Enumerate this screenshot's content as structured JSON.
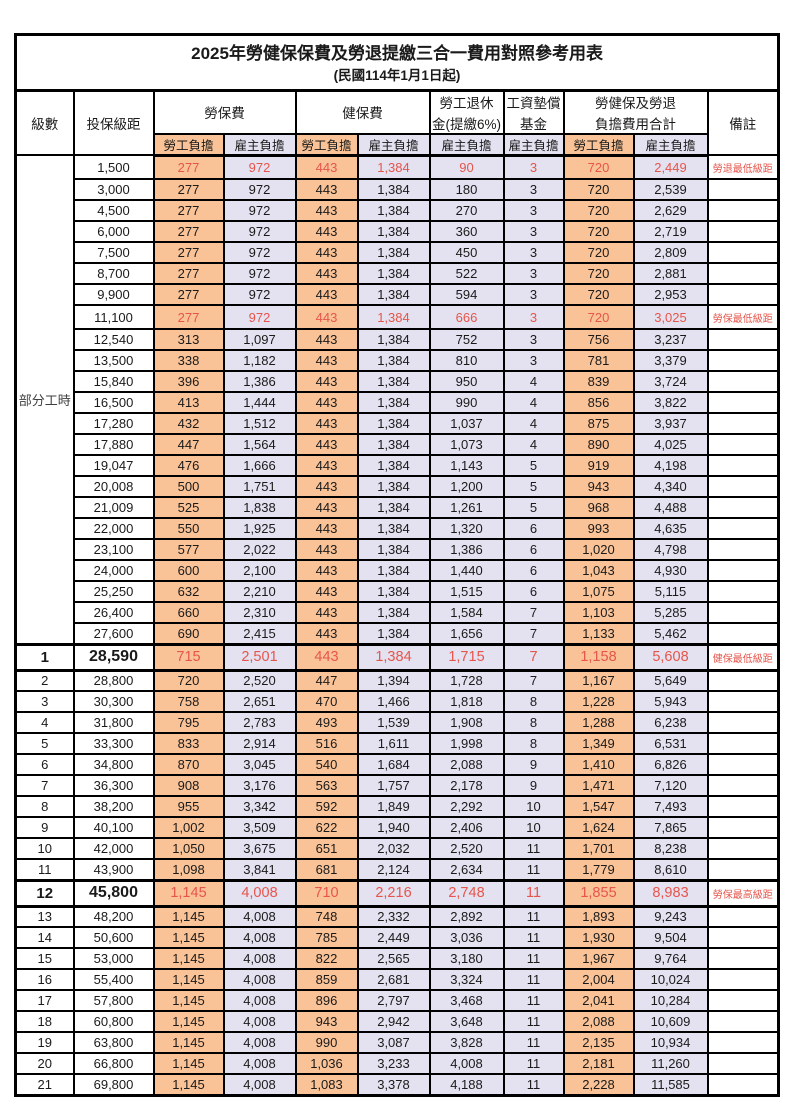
{
  "title": "2025年勞健保保費及勞退提繳三合一費用對照參考用表",
  "subtitle": "(民國114年1月1日起)",
  "colors": {
    "employee_bg": "#fac397",
    "employer_bg": "#e4e2f0",
    "highlight_text": "#e6554b",
    "border": "#000000"
  },
  "header": {
    "level": "級數",
    "bracket": "投保級距",
    "labor_insurance": "勞保費",
    "health_insurance": "健保費",
    "pension_line1": "勞工退休",
    "pension_line2": "金(提繳6%)",
    "arrears_line1": "工資墊償",
    "arrears_line2": "基金",
    "total_line1": "勞健保及勞退",
    "total_line2": "負擔費用合計",
    "remark": "備註",
    "employee": "勞工負擔",
    "employer": "雇主負擔"
  },
  "part_time_label": "部分工時",
  "rows": [
    {
      "lv": "",
      "br": "1,500",
      "v": [
        "277",
        "972",
        "443",
        "1,384",
        "90",
        "3",
        "720",
        "2,449"
      ],
      "rm": "勞退最低級距",
      "em": "red"
    },
    {
      "lv": "",
      "br": "3,000",
      "v": [
        "277",
        "972",
        "443",
        "1,384",
        "180",
        "3",
        "720",
        "2,539"
      ],
      "rm": "",
      "em": ""
    },
    {
      "lv": "",
      "br": "4,500",
      "v": [
        "277",
        "972",
        "443",
        "1,384",
        "270",
        "3",
        "720",
        "2,629"
      ],
      "rm": "",
      "em": ""
    },
    {
      "lv": "",
      "br": "6,000",
      "v": [
        "277",
        "972",
        "443",
        "1,384",
        "360",
        "3",
        "720",
        "2,719"
      ],
      "rm": "",
      "em": ""
    },
    {
      "lv": "",
      "br": "7,500",
      "v": [
        "277",
        "972",
        "443",
        "1,384",
        "450",
        "3",
        "720",
        "2,809"
      ],
      "rm": "",
      "em": ""
    },
    {
      "lv": "",
      "br": "8,700",
      "v": [
        "277",
        "972",
        "443",
        "1,384",
        "522",
        "3",
        "720",
        "2,881"
      ],
      "rm": "",
      "em": ""
    },
    {
      "lv": "",
      "br": "9,900",
      "v": [
        "277",
        "972",
        "443",
        "1,384",
        "594",
        "3",
        "720",
        "2,953"
      ],
      "rm": "",
      "em": ""
    },
    {
      "lv": "",
      "br": "11,100",
      "v": [
        "277",
        "972",
        "443",
        "1,384",
        "666",
        "3",
        "720",
        "3,025"
      ],
      "rm": "勞保最低級距",
      "em": "red"
    },
    {
      "lv": "",
      "br": "12,540",
      "v": [
        "313",
        "1,097",
        "443",
        "1,384",
        "752",
        "3",
        "756",
        "3,237"
      ],
      "rm": "",
      "em": ""
    },
    {
      "lv": "",
      "br": "13,500",
      "v": [
        "338",
        "1,182",
        "443",
        "1,384",
        "810",
        "3",
        "781",
        "3,379"
      ],
      "rm": "",
      "em": ""
    },
    {
      "lv": "",
      "br": "15,840",
      "v": [
        "396",
        "1,386",
        "443",
        "1,384",
        "950",
        "4",
        "839",
        "3,724"
      ],
      "rm": "",
      "em": ""
    },
    {
      "lv": "",
      "br": "16,500",
      "v": [
        "413",
        "1,444",
        "443",
        "1,384",
        "990",
        "4",
        "856",
        "3,822"
      ],
      "rm": "",
      "em": ""
    },
    {
      "lv": "",
      "br": "17,280",
      "v": [
        "432",
        "1,512",
        "443",
        "1,384",
        "1,037",
        "4",
        "875",
        "3,937"
      ],
      "rm": "",
      "em": ""
    },
    {
      "lv": "",
      "br": "17,880",
      "v": [
        "447",
        "1,564",
        "443",
        "1,384",
        "1,073",
        "4",
        "890",
        "4,025"
      ],
      "rm": "",
      "em": ""
    },
    {
      "lv": "",
      "br": "19,047",
      "v": [
        "476",
        "1,666",
        "443",
        "1,384",
        "1,143",
        "5",
        "919",
        "4,198"
      ],
      "rm": "",
      "em": ""
    },
    {
      "lv": "",
      "br": "20,008",
      "v": [
        "500",
        "1,751",
        "443",
        "1,384",
        "1,200",
        "5",
        "943",
        "4,340"
      ],
      "rm": "",
      "em": ""
    },
    {
      "lv": "",
      "br": "21,009",
      "v": [
        "525",
        "1,838",
        "443",
        "1,384",
        "1,261",
        "5",
        "968",
        "4,488"
      ],
      "rm": "",
      "em": ""
    },
    {
      "lv": "",
      "br": "22,000",
      "v": [
        "550",
        "1,925",
        "443",
        "1,384",
        "1,320",
        "6",
        "993",
        "4,635"
      ],
      "rm": "",
      "em": ""
    },
    {
      "lv": "",
      "br": "23,100",
      "v": [
        "577",
        "2,022",
        "443",
        "1,384",
        "1,386",
        "6",
        "1,020",
        "4,798"
      ],
      "rm": "",
      "em": ""
    },
    {
      "lv": "",
      "br": "24,000",
      "v": [
        "600",
        "2,100",
        "443",
        "1,384",
        "1,440",
        "6",
        "1,043",
        "4,930"
      ],
      "rm": "",
      "em": ""
    },
    {
      "lv": "",
      "br": "25,250",
      "v": [
        "632",
        "2,210",
        "443",
        "1,384",
        "1,515",
        "6",
        "1,075",
        "5,115"
      ],
      "rm": "",
      "em": ""
    },
    {
      "lv": "",
      "br": "26,400",
      "v": [
        "660",
        "2,310",
        "443",
        "1,384",
        "1,584",
        "7",
        "1,103",
        "5,285"
      ],
      "rm": "",
      "em": ""
    },
    {
      "lv": "",
      "br": "27,600",
      "v": [
        "690",
        "2,415",
        "443",
        "1,384",
        "1,656",
        "7",
        "1,133",
        "5,462"
      ],
      "rm": "",
      "em": ""
    },
    {
      "lv": "1",
      "br": "28,590",
      "v": [
        "715",
        "2,501",
        "443",
        "1,384",
        "1,715",
        "7",
        "1,158",
        "5,608"
      ],
      "rm": "健保最低級距",
      "em": "red-big"
    },
    {
      "lv": "2",
      "br": "28,800",
      "v": [
        "720",
        "2,520",
        "447",
        "1,394",
        "1,728",
        "7",
        "1,167",
        "5,649"
      ],
      "rm": "",
      "em": ""
    },
    {
      "lv": "3",
      "br": "30,300",
      "v": [
        "758",
        "2,651",
        "470",
        "1,466",
        "1,818",
        "8",
        "1,228",
        "5,943"
      ],
      "rm": "",
      "em": ""
    },
    {
      "lv": "4",
      "br": "31,800",
      "v": [
        "795",
        "2,783",
        "493",
        "1,539",
        "1,908",
        "8",
        "1,288",
        "6,238"
      ],
      "rm": "",
      "em": ""
    },
    {
      "lv": "5",
      "br": "33,300",
      "v": [
        "833",
        "2,914",
        "516",
        "1,611",
        "1,998",
        "8",
        "1,349",
        "6,531"
      ],
      "rm": "",
      "em": ""
    },
    {
      "lv": "6",
      "br": "34,800",
      "v": [
        "870",
        "3,045",
        "540",
        "1,684",
        "2,088",
        "9",
        "1,410",
        "6,826"
      ],
      "rm": "",
      "em": ""
    },
    {
      "lv": "7",
      "br": "36,300",
      "v": [
        "908",
        "3,176",
        "563",
        "1,757",
        "2,178",
        "9",
        "1,471",
        "7,120"
      ],
      "rm": "",
      "em": ""
    },
    {
      "lv": "8",
      "br": "38,200",
      "v": [
        "955",
        "3,342",
        "592",
        "1,849",
        "2,292",
        "10",
        "1,547",
        "7,493"
      ],
      "rm": "",
      "em": ""
    },
    {
      "lv": "9",
      "br": "40,100",
      "v": [
        "1,002",
        "3,509",
        "622",
        "1,940",
        "2,406",
        "10",
        "1,624",
        "7,865"
      ],
      "rm": "",
      "em": ""
    },
    {
      "lv": "10",
      "br": "42,000",
      "v": [
        "1,050",
        "3,675",
        "651",
        "2,032",
        "2,520",
        "11",
        "1,701",
        "8,238"
      ],
      "rm": "",
      "em": ""
    },
    {
      "lv": "11",
      "br": "43,900",
      "v": [
        "1,098",
        "3,841",
        "681",
        "2,124",
        "2,634",
        "11",
        "1,779",
        "8,610"
      ],
      "rm": "",
      "em": ""
    },
    {
      "lv": "12",
      "br": "45,800",
      "v": [
        "1,145",
        "4,008",
        "710",
        "2,216",
        "2,748",
        "11",
        "1,855",
        "8,983"
      ],
      "rm": "勞保最高級距",
      "em": "red-big"
    },
    {
      "lv": "13",
      "br": "48,200",
      "v": [
        "1,145",
        "4,008",
        "748",
        "2,332",
        "2,892",
        "11",
        "1,893",
        "9,243"
      ],
      "rm": "",
      "em": ""
    },
    {
      "lv": "14",
      "br": "50,600",
      "v": [
        "1,145",
        "4,008",
        "785",
        "2,449",
        "3,036",
        "11",
        "1,930",
        "9,504"
      ],
      "rm": "",
      "em": ""
    },
    {
      "lv": "15",
      "br": "53,000",
      "v": [
        "1,145",
        "4,008",
        "822",
        "2,565",
        "3,180",
        "11",
        "1,967",
        "9,764"
      ],
      "rm": "",
      "em": ""
    },
    {
      "lv": "16",
      "br": "55,400",
      "v": [
        "1,145",
        "4,008",
        "859",
        "2,681",
        "3,324",
        "11",
        "2,004",
        "10,024"
      ],
      "rm": "",
      "em": ""
    },
    {
      "lv": "17",
      "br": "57,800",
      "v": [
        "1,145",
        "4,008",
        "896",
        "2,797",
        "3,468",
        "11",
        "2,041",
        "10,284"
      ],
      "rm": "",
      "em": ""
    },
    {
      "lv": "18",
      "br": "60,800",
      "v": [
        "1,145",
        "4,008",
        "943",
        "2,942",
        "3,648",
        "11",
        "2,088",
        "10,609"
      ],
      "rm": "",
      "em": ""
    },
    {
      "lv": "19",
      "br": "63,800",
      "v": [
        "1,145",
        "4,008",
        "990",
        "3,087",
        "3,828",
        "11",
        "2,135",
        "10,934"
      ],
      "rm": "",
      "em": ""
    },
    {
      "lv": "20",
      "br": "66,800",
      "v": [
        "1,145",
        "4,008",
        "1,036",
        "3,233",
        "4,008",
        "11",
        "2,181",
        "11,260"
      ],
      "rm": "",
      "em": ""
    },
    {
      "lv": "21",
      "br": "69,800",
      "v": [
        "1,145",
        "4,008",
        "1,083",
        "3,378",
        "4,188",
        "11",
        "2,228",
        "11,585"
      ],
      "rm": "",
      "em": ""
    }
  ]
}
